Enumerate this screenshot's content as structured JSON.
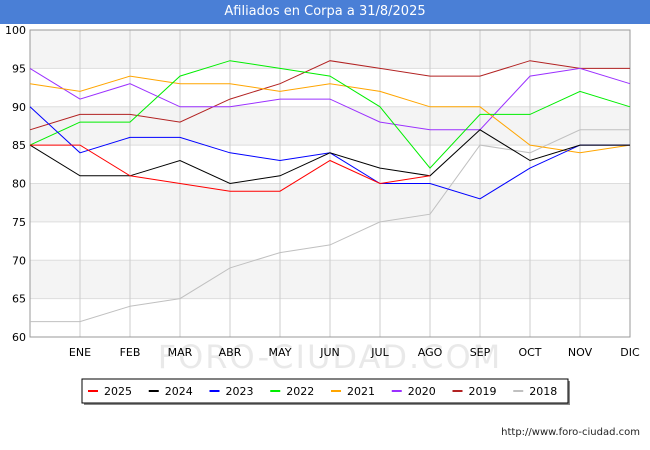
{
  "title": "Afiliados en Corpa a 31/8/2025",
  "watermark": "FORO-CIUDAD.COM",
  "url": "http://www.foro-ciudad.com",
  "chart_data": {
    "type": "line",
    "categories": [
      "",
      "ENE",
      "FEB",
      "MAR",
      "ABR",
      "MAY",
      "JUN",
      "JUL",
      "AGO",
      "SEP",
      "OCT",
      "NOV",
      "DIC"
    ],
    "ylim": [
      60,
      100
    ],
    "yticks": [
      60,
      65,
      70,
      75,
      80,
      85,
      90,
      95,
      100
    ],
    "grid": true,
    "legend_position": "bottom",
    "series": [
      {
        "name": "2025",
        "color": "#ff0000",
        "values": [
          85,
          85,
          81,
          80,
          79,
          79,
          83,
          80,
          81,
          null,
          null,
          null,
          null
        ]
      },
      {
        "name": "2024",
        "color": "#000000",
        "values": [
          85,
          81,
          81,
          83,
          80,
          81,
          84,
          82,
          81,
          87,
          83,
          85,
          85
        ]
      },
      {
        "name": "2023",
        "color": "#0000ff",
        "values": [
          90,
          84,
          86,
          86,
          84,
          83,
          84,
          80,
          80,
          78,
          82,
          85,
          85
        ]
      },
      {
        "name": "2022",
        "color": "#00ee00",
        "values": [
          85,
          88,
          88,
          94,
          96,
          95,
          94,
          90,
          82,
          89,
          89,
          92,
          90
        ]
      },
      {
        "name": "2021",
        "color": "#ffa500",
        "values": [
          93,
          92,
          94,
          93,
          93,
          92,
          93,
          92,
          90,
          90,
          85,
          84,
          85
        ]
      },
      {
        "name": "2020",
        "color": "#9b30ff",
        "values": [
          95,
          91,
          93,
          90,
          90,
          91,
          91,
          88,
          87,
          87,
          94,
          95,
          93
        ]
      },
      {
        "name": "2019",
        "color": "#b22222",
        "values": [
          87,
          89,
          89,
          88,
          91,
          93,
          96,
          95,
          94,
          94,
          96,
          95,
          95
        ]
      },
      {
        "name": "2018",
        "color": "#c0c0c0",
        "values": [
          62,
          62,
          64,
          65,
          69,
          71,
          72,
          75,
          76,
          85,
          84,
          87,
          87
        ]
      }
    ]
  }
}
